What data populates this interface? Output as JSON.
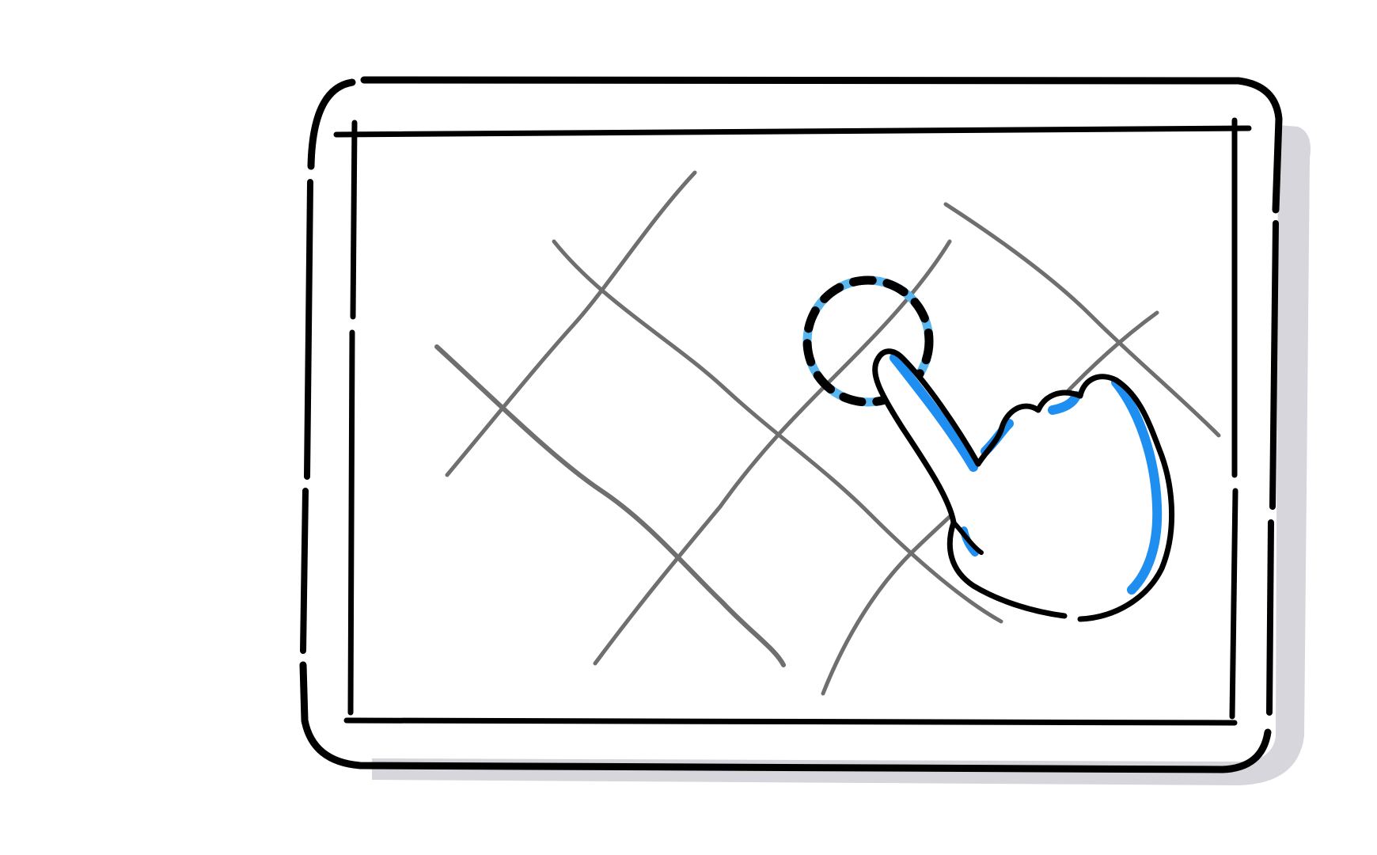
{
  "illustration": {
    "subject": "tablet-map-tap",
    "colors": {
      "background": "#ffffff",
      "outline": "#000000",
      "shadow": "#d6d6dc",
      "map_lines": "#6f6f6f",
      "accent": "#1e8ff0",
      "accent_light": "#5ab6ef"
    },
    "icons": [
      "tablet-icon",
      "map-grid-icon",
      "tap-target-icon",
      "hand-pointer-icon"
    ]
  }
}
